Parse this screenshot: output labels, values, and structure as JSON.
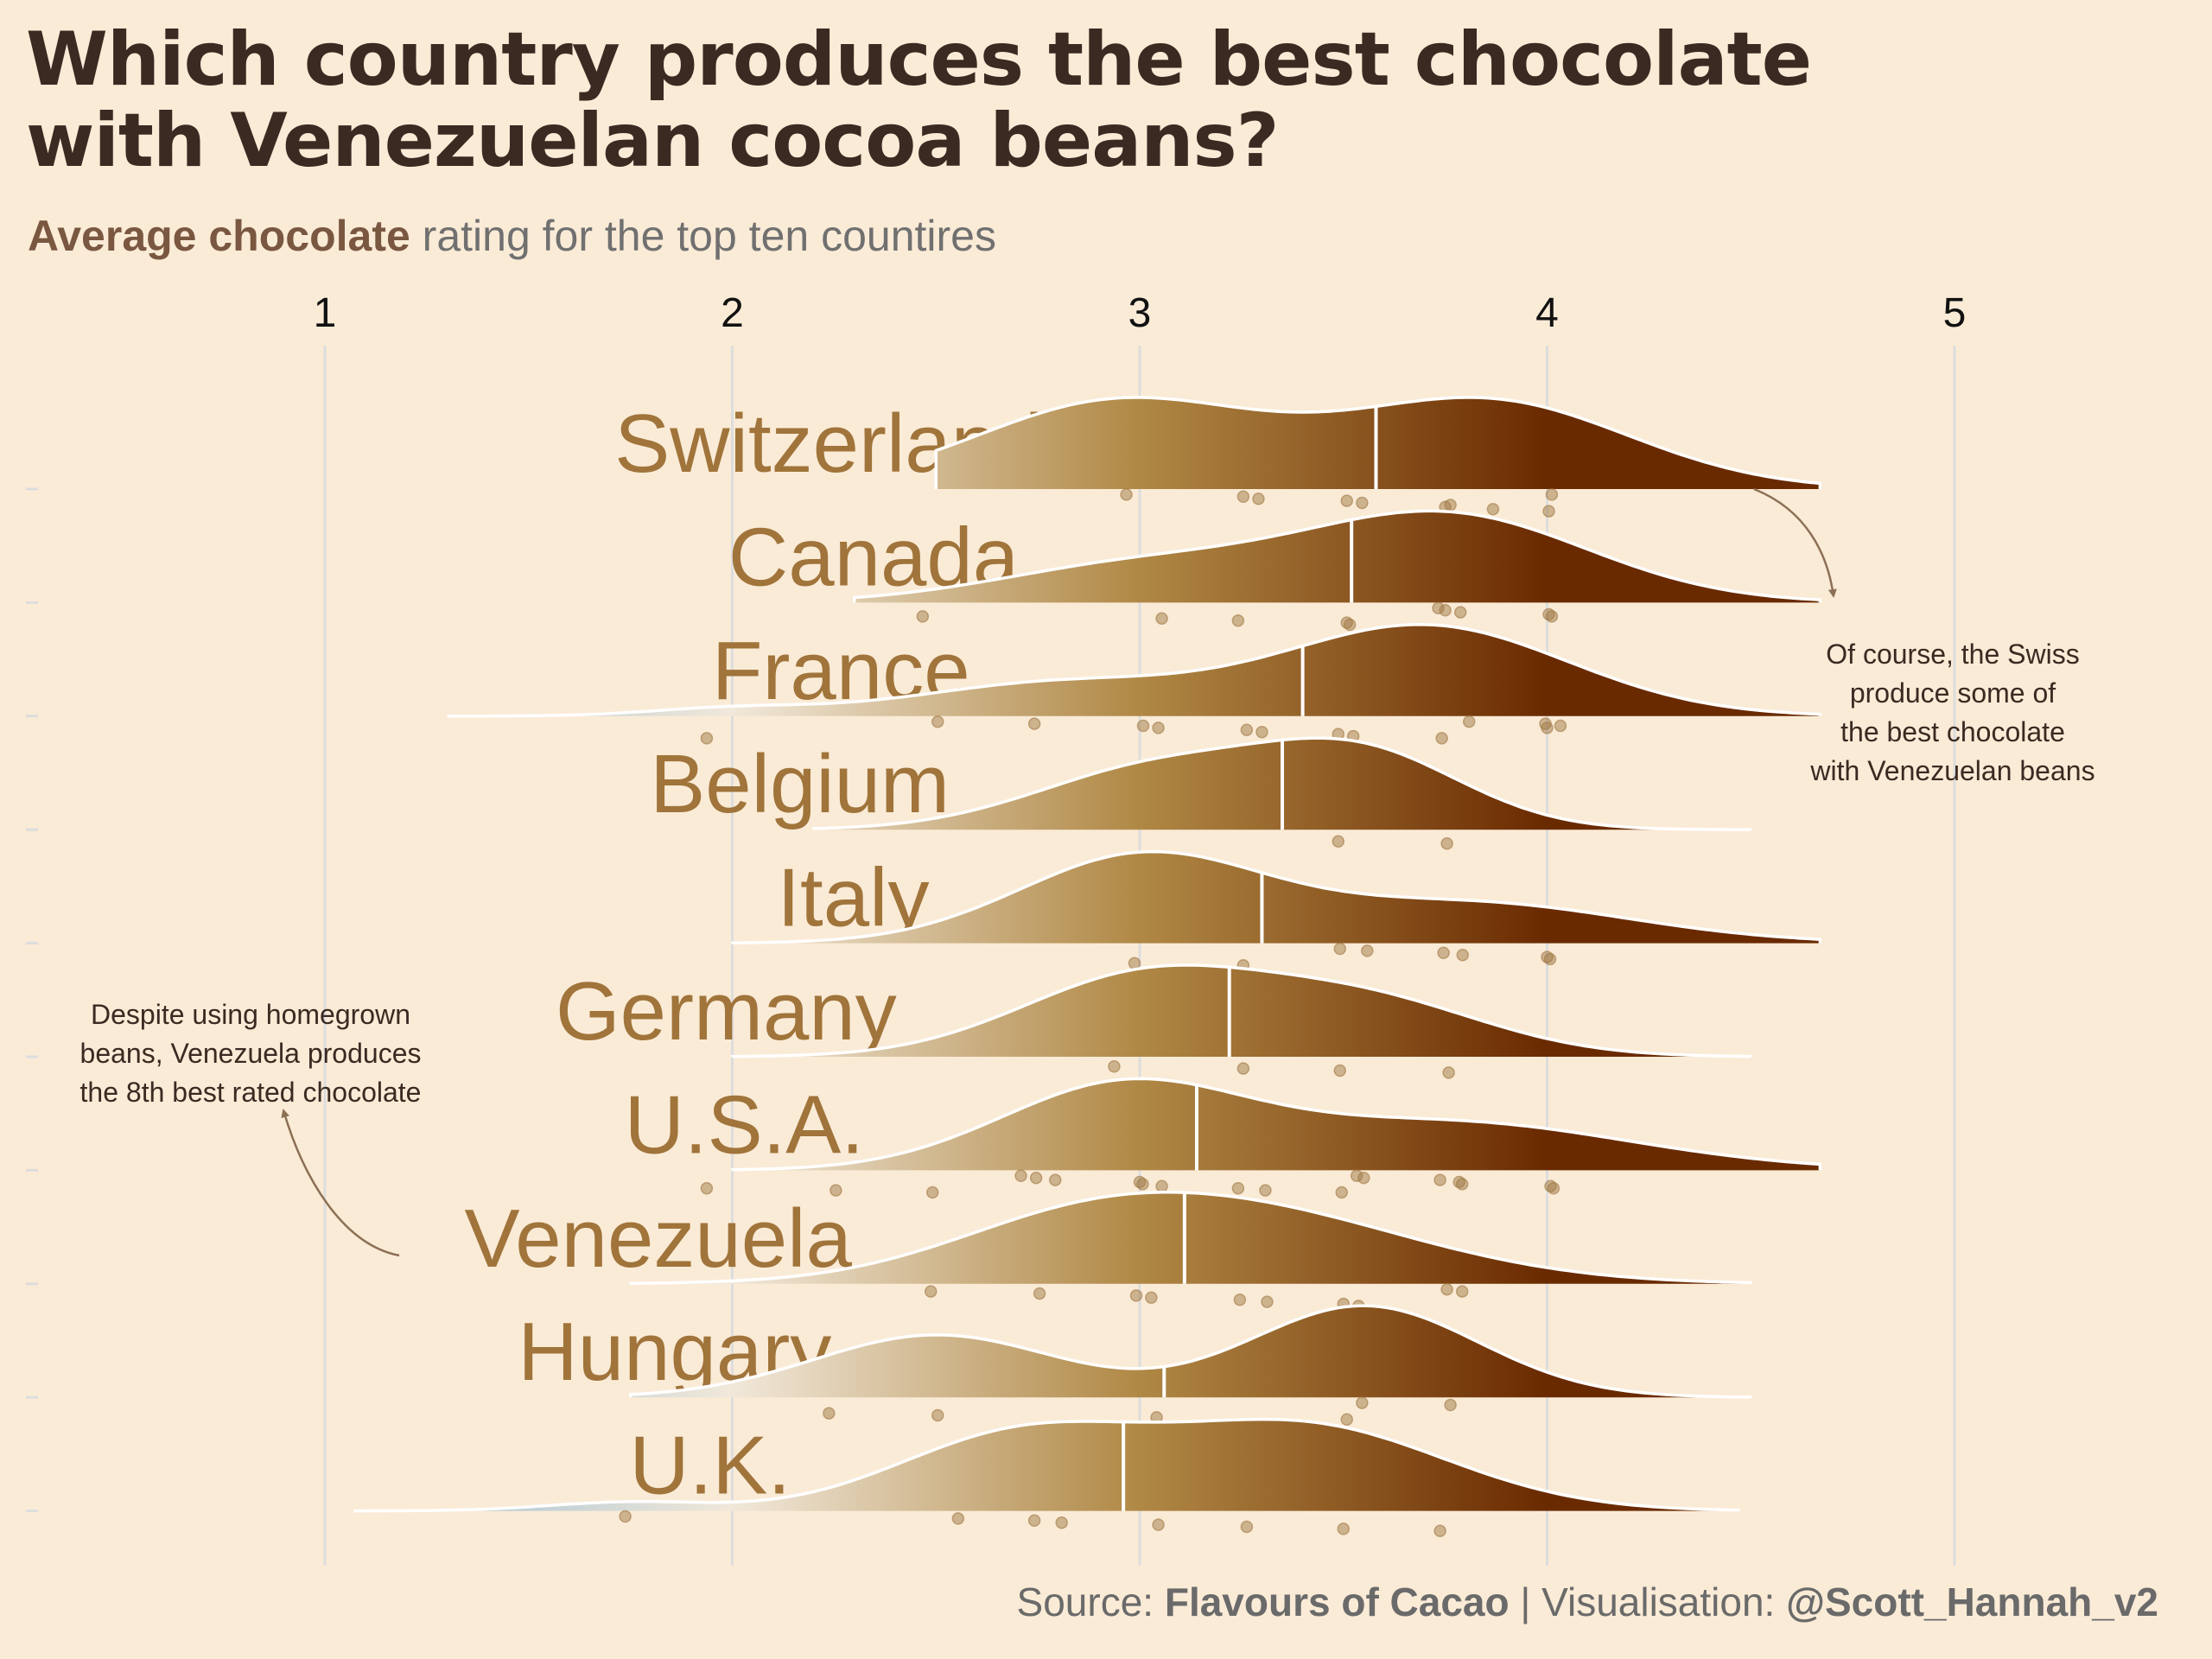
{
  "title_lines": [
    "Which country produces the best chocolate",
    "with Venezuelan cocoa beans?"
  ],
  "subtitle": {
    "emphasis": "Average chocolate",
    "rest": " rating for the top ten countires"
  },
  "source": {
    "prefix": "Source: ",
    "source_name": "Flavours of Cacao",
    "middle": " | Visualisation: ",
    "handle": "@Scott_Hannah_v2"
  },
  "annotations": {
    "swiss": [
      "Of course, the Swiss",
      "produce some of",
      "the best chocolate",
      "with Venezuelan beans"
    ],
    "venezuela": [
      "Despite using homegrown",
      "beans, Venezuela produces",
      "the 8th best rated chocolate"
    ]
  },
  "colors": {
    "background": "#FAEBD7",
    "low_end": "#8FB6D0",
    "mid_light": "#F1E8DA",
    "mid": "#B08845",
    "high_end": "#6A2A00",
    "country_label": "#A0743A",
    "points": "#A07A45",
    "gridline": "#DDDDDD",
    "annotation_arrow": "#8C7055"
  },
  "chart_data": {
    "type": "ridgeline",
    "xlim": [
      0.1,
      5.6
    ],
    "x_ticks": [
      "1",
      "2",
      "3",
      "4",
      "5"
    ],
    "grid": true,
    "series": [
      {
        "name": "Switzerland",
        "mean": 3.58,
        "range": [
          2.5,
          4.67
        ],
        "peaks": [
          [
            2.95,
            0.35,
            0.45
          ],
          [
            3.85,
            0.35,
            0.45
          ]
        ],
        "points": [
          [
            2.98,
            0
          ],
          [
            3.25,
            0
          ],
          [
            3.3,
            0
          ],
          [
            3.5,
            0
          ],
          [
            3.55,
            0
          ],
          [
            3.75,
            0
          ],
          [
            3.75,
            0
          ],
          [
            3.88,
            0
          ],
          [
            4.0,
            0
          ],
          [
            4.02,
            0
          ]
        ]
      },
      {
        "name": "Canada",
        "mean": 3.52,
        "range": [
          2.3,
          4.67
        ],
        "peaks": [
          [
            3.0,
            0.35,
            0.3
          ],
          [
            3.75,
            0.35,
            0.7
          ]
        ],
        "points": [
          [
            2.48,
            0
          ],
          [
            3.05,
            0
          ],
          [
            3.25,
            0
          ],
          [
            3.5,
            0
          ],
          [
            3.52,
            0
          ],
          [
            3.72,
            0
          ],
          [
            3.75,
            0
          ],
          [
            3.8,
            0
          ],
          [
            4.0,
            0
          ],
          [
            4.02,
            0
          ]
        ]
      },
      {
        "name": "France",
        "mean": 3.4,
        "range": [
          1.3,
          4.67
        ],
        "peaks": [
          [
            2.0,
            0.2,
            0.05
          ],
          [
            2.8,
            0.35,
            0.22
          ],
          [
            3.7,
            0.35,
            0.6
          ]
        ],
        "points": [
          [
            1.95,
            0
          ],
          [
            2.5,
            0
          ],
          [
            2.75,
            0
          ],
          [
            3.0,
            0
          ],
          [
            3.05,
            0
          ],
          [
            3.25,
            0
          ],
          [
            3.3,
            0
          ],
          [
            3.5,
            0
          ],
          [
            3.52,
            0
          ],
          [
            3.75,
            0
          ],
          [
            3.8,
            0
          ],
          [
            4.0,
            0
          ],
          [
            4.02,
            0
          ],
          [
            4.0,
            0
          ]
        ]
      },
      {
        "name": "Belgium",
        "mean": 3.35,
        "range": [
          2.2,
          4.5
        ],
        "peaks": [
          [
            3.05,
            0.3,
            0.7
          ],
          [
            3.55,
            0.25,
            0.8
          ]
        ],
        "points": [
          [
            3.5,
            0
          ],
          [
            3.75,
            0
          ]
        ]
      },
      {
        "name": "Italy",
        "mean": 3.3,
        "range": [
          2.0,
          4.67
        ],
        "peaks": [
          [
            3.0,
            0.3,
            0.95
          ],
          [
            3.8,
            0.4,
            0.45
          ]
        ],
        "points": [
          [
            3.0,
            0
          ],
          [
            3.25,
            0
          ],
          [
            3.5,
            0
          ],
          [
            3.55,
            0
          ],
          [
            3.75,
            0
          ],
          [
            3.78,
            0
          ],
          [
            4.0,
            0
          ],
          [
            4.02,
            0
          ]
        ]
      },
      {
        "name": "Germany",
        "mean": 3.22,
        "range": [
          2.0,
          4.5
        ],
        "peaks": [
          [
            3.0,
            0.3,
            0.85
          ],
          [
            3.55,
            0.3,
            0.6
          ]
        ],
        "points": [
          [
            2.95,
            0
          ],
          [
            3.25,
            0
          ],
          [
            3.5,
            0
          ],
          [
            3.75,
            0
          ]
        ]
      },
      {
        "name": "U.S.A.",
        "mean": 3.14,
        "range": [
          2.0,
          4.67
        ],
        "peaks": [
          [
            2.95,
            0.3,
            0.75
          ],
          [
            3.75,
            0.45,
            0.45
          ]
        ],
        "points": [
          [
            1.95,
            0
          ],
          [
            2.25,
            0
          ],
          [
            2.5,
            0
          ],
          [
            2.7,
            0
          ],
          [
            2.75,
            0
          ],
          [
            2.78,
            0
          ],
          [
            3.0,
            0
          ],
          [
            3.02,
            0
          ],
          [
            3.05,
            0
          ],
          [
            3.25,
            0
          ],
          [
            3.3,
            0
          ],
          [
            3.5,
            0
          ],
          [
            3.52,
            0
          ],
          [
            3.55,
            0
          ],
          [
            3.75,
            0
          ],
          [
            3.78,
            0
          ],
          [
            3.8,
            0
          ],
          [
            4.0,
            0
          ],
          [
            4.02,
            0
          ]
        ]
      },
      {
        "name": "Venezuela",
        "mean": 3.11,
        "range": [
          1.75,
          4.5
        ],
        "peaks": [
          [
            2.8,
            0.3,
            0.25
          ],
          [
            3.2,
            0.45,
            0.8
          ]
        ],
        "points": [
          [
            2.5,
            0
          ],
          [
            2.75,
            0
          ],
          [
            3.0,
            0
          ],
          [
            3.02,
            0
          ],
          [
            3.25,
            0
          ],
          [
            3.3,
            0
          ],
          [
            3.5,
            0
          ],
          [
            3.55,
            0
          ],
          [
            3.75,
            0
          ],
          [
            3.8,
            0
          ]
        ]
      },
      {
        "name": "Hungary",
        "mean": 3.06,
        "range": [
          1.75,
          4.5
        ],
        "peaks": [
          [
            2.5,
            0.3,
            0.6
          ],
          [
            3.55,
            0.28,
            0.88
          ]
        ],
        "points": [
          [
            2.25,
            0
          ],
          [
            2.5,
            0
          ],
          [
            3.05,
            0
          ],
          [
            3.5,
            0
          ],
          [
            3.55,
            0
          ],
          [
            3.75,
            0
          ]
        ]
      },
      {
        "name": "U.K.",
        "mean": 2.96,
        "range": [
          1.07,
          4.47
        ],
        "peaks": [
          [
            1.75,
            0.2,
            0.06
          ],
          [
            2.7,
            0.3,
            0.5
          ],
          [
            3.4,
            0.35,
            0.58
          ]
        ],
        "points": [
          [
            1.75,
            0
          ],
          [
            2.55,
            0
          ],
          [
            2.75,
            0
          ],
          [
            2.8,
            0
          ],
          [
            3.05,
            0
          ],
          [
            3.25,
            0
          ],
          [
            3.5,
            0
          ],
          [
            3.75,
            0
          ]
        ]
      }
    ]
  }
}
